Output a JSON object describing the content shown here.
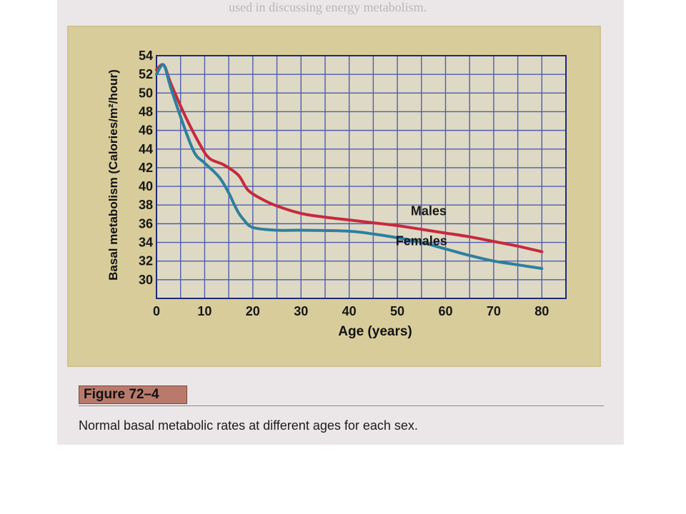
{
  "figure": {
    "label": "Figure 72–4",
    "caption": "Normal basal metabolic rates at different ages for each sex."
  },
  "background_text": "used in discussing energy metabolism.",
  "colors": {
    "male_line": "#c62a3e",
    "female_line": "#2e7f9f",
    "grid": "#4f5db0",
    "panel": "#d8cc9b",
    "page": "#ebe7e8",
    "figure_label_bg": "#b97a6c"
  },
  "chart_data": {
    "type": "line",
    "xlabel": "Age (years)",
    "ylabel": "Basal metabolism (Calories/m²/hour)",
    "xlim": [
      0,
      85
    ],
    "ylim": [
      28,
      54
    ],
    "x_ticks": [
      0,
      10,
      20,
      30,
      40,
      50,
      60,
      70,
      80
    ],
    "y_ticks": [
      30,
      32,
      34,
      36,
      38,
      40,
      42,
      44,
      46,
      48,
      50,
      52,
      54
    ],
    "grid": true,
    "series": [
      {
        "name": "Males",
        "x": [
          0,
          1.5,
          3,
          6,
          9,
          11,
          14,
          17,
          19,
          22,
          25,
          30,
          35,
          40,
          45,
          50,
          55,
          60,
          65,
          70,
          75,
          80
        ],
        "y": [
          52.5,
          53,
          51,
          47.5,
          44.5,
          43,
          42.3,
          41.2,
          39.6,
          38.6,
          37.9,
          37.1,
          36.7,
          36.4,
          36.1,
          35.8,
          35.4,
          35,
          34.6,
          34.1,
          33.6,
          33
        ]
      },
      {
        "name": "Females",
        "x": [
          0,
          1.5,
          3,
          6,
          8,
          10,
          13,
          15,
          16,
          17,
          18,
          20,
          25,
          30,
          40,
          45,
          50,
          55,
          60,
          65,
          70,
          75,
          80
        ],
        "y": [
          52,
          53,
          50.5,
          46,
          43.5,
          42.5,
          41,
          39.3,
          38.2,
          37.2,
          36.5,
          35.6,
          35.3,
          35.3,
          35.2,
          34.9,
          34.5,
          34,
          33.3,
          32.6,
          32,
          31.6,
          31.2
        ]
      }
    ]
  }
}
